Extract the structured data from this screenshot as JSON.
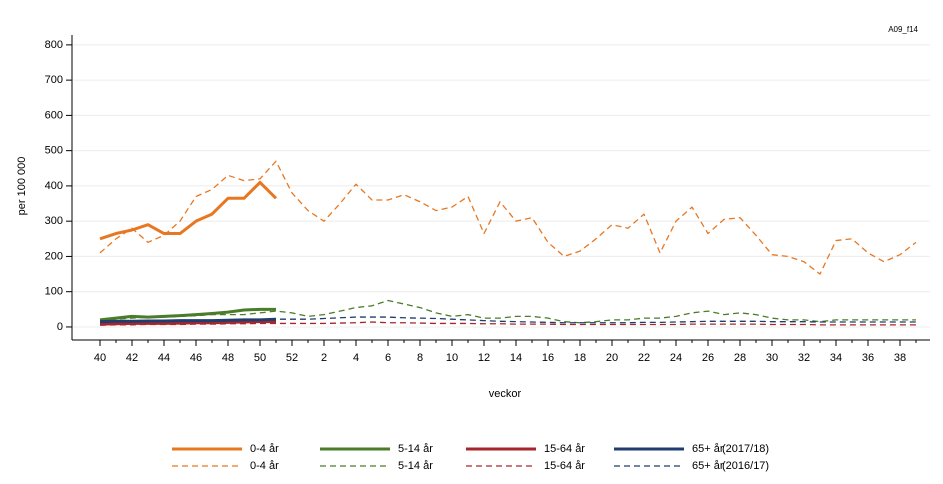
{
  "chart_data": {
    "type": "line",
    "code": "A09_f14",
    "ylabel": "per 100 000",
    "xlabel": "veckor",
    "categories": [
      40,
      null,
      42,
      null,
      44,
      null,
      46,
      null,
      48,
      null,
      50,
      null,
      52,
      null,
      2,
      null,
      4,
      null,
      6,
      null,
      8,
      null,
      10,
      null,
      12,
      null,
      14,
      null,
      16,
      null,
      18,
      null,
      20,
      null,
      22,
      null,
      24,
      null,
      26,
      null,
      28,
      null,
      30,
      null,
      32,
      null,
      34,
      null,
      36,
      null,
      38,
      null
    ],
    "ylim": [
      -37,
      828
    ],
    "yticks": [
      0,
      100,
      200,
      300,
      400,
      500,
      600,
      700,
      800
    ],
    "season_labels": [
      "(2017/18)",
      "(2016/17)"
    ],
    "series": [
      {
        "name": "0-4 år",
        "color": "#e87722",
        "style": "solid",
        "values": [
          250,
          265,
          275,
          290,
          265,
          265,
          300,
          320,
          365,
          365,
          410,
          365,
          null,
          null,
          null,
          null,
          null,
          null,
          null,
          null,
          null,
          null,
          null,
          null,
          null,
          null,
          null,
          null,
          null,
          null,
          null,
          null,
          null,
          null,
          null,
          null,
          null,
          null,
          null,
          null,
          null,
          null,
          null,
          null,
          null,
          null,
          null,
          null,
          null,
          null,
          null,
          null
        ]
      },
      {
        "name": "5-14 år",
        "color": "#4a7c2a",
        "style": "solid",
        "values": [
          20,
          25,
          30,
          28,
          30,
          32,
          35,
          38,
          42,
          48,
          50,
          50,
          null,
          null,
          null,
          null,
          null,
          null,
          null,
          null,
          null,
          null,
          null,
          null,
          null,
          null,
          null,
          null,
          null,
          null,
          null,
          null,
          null,
          null,
          null,
          null,
          null,
          null,
          null,
          null,
          null,
          null,
          null,
          null,
          null,
          null,
          null,
          null,
          null,
          null,
          null,
          null
        ]
      },
      {
        "name": "15-64 år",
        "color": "#a8262b",
        "style": "solid",
        "values": [
          8,
          9,
          10,
          10,
          10,
          11,
          12,
          12,
          13,
          14,
          15,
          15,
          null,
          null,
          null,
          null,
          null,
          null,
          null,
          null,
          null,
          null,
          null,
          null,
          null,
          null,
          null,
          null,
          null,
          null,
          null,
          null,
          null,
          null,
          null,
          null,
          null,
          null,
          null,
          null,
          null,
          null,
          null,
          null,
          null,
          null,
          null,
          null,
          null,
          null,
          null,
          null
        ]
      },
      {
        "name": "65+ år",
        "color": "#1f3d6e",
        "style": "solid",
        "values": [
          15,
          16,
          16,
          17,
          17,
          18,
          18,
          18,
          19,
          20,
          20,
          22,
          null,
          null,
          null,
          null,
          null,
          null,
          null,
          null,
          null,
          null,
          null,
          null,
          null,
          null,
          null,
          null,
          null,
          null,
          null,
          null,
          null,
          null,
          null,
          null,
          null,
          null,
          null,
          null,
          null,
          null,
          null,
          null,
          null,
          null,
          null,
          null,
          null,
          null,
          null,
          null
        ]
      },
      {
        "name": "0-4 år",
        "color": "#e87722",
        "style": "dashed",
        "values": [
          210,
          250,
          280,
          240,
          260,
          300,
          370,
          390,
          430,
          415,
          420,
          470,
          380,
          330,
          300,
          350,
          405,
          360,
          360,
          375,
          355,
          330,
          340,
          370,
          265,
          355,
          300,
          310,
          240,
          200,
          215,
          250,
          290,
          280,
          320,
          210,
          300,
          340,
          265,
          305,
          310,
          260,
          205,
          200,
          185,
          150,
          245,
          250,
          210,
          185,
          205,
          240
        ]
      },
      {
        "name": "5-14 år",
        "color": "#4a7c2a",
        "style": "dashed",
        "values": [
          20,
          22,
          25,
          28,
          28,
          30,
          32,
          35,
          35,
          35,
          40,
          45,
          40,
          30,
          35,
          45,
          55,
          60,
          75,
          65,
          55,
          40,
          30,
          35,
          25,
          25,
          30,
          30,
          25,
          15,
          12,
          15,
          20,
          20,
          25,
          25,
          30,
          40,
          45,
          35,
          40,
          35,
          25,
          20,
          20,
          15,
          20,
          20,
          20,
          20,
          20,
          20
        ]
      },
      {
        "name": "15-64 år",
        "color": "#a8262b",
        "style": "dashed",
        "values": [
          5,
          6,
          6,
          7,
          7,
          7,
          8,
          8,
          9,
          9,
          10,
          10,
          10,
          10,
          10,
          11,
          12,
          14,
          12,
          12,
          11,
          10,
          10,
          10,
          9,
          9,
          8,
          8,
          8,
          7,
          7,
          7,
          7,
          7,
          7,
          7,
          7,
          8,
          8,
          8,
          8,
          8,
          7,
          7,
          7,
          6,
          6,
          6,
          6,
          6,
          6,
          6
        ]
      },
      {
        "name": "65+ år",
        "color": "#1f3d6e",
        "style": "dashed",
        "values": [
          15,
          15,
          16,
          16,
          17,
          17,
          18,
          18,
          18,
          19,
          20,
          22,
          22,
          22,
          24,
          26,
          28,
          28,
          28,
          26,
          25,
          24,
          22,
          20,
          18,
          16,
          15,
          14,
          13,
          12,
          12,
          12,
          12,
          12,
          13,
          13,
          14,
          15,
          16,
          16,
          16,
          16,
          15,
          15,
          15,
          14,
          14,
          14,
          14,
          14,
          14,
          14
        ]
      }
    ]
  }
}
